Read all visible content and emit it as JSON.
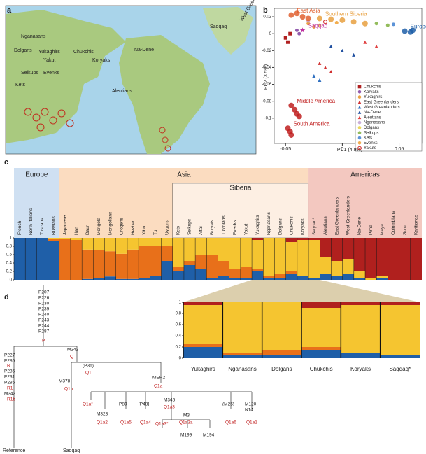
{
  "panel_a": {
    "label": "a",
    "places": [
      "Nganasans",
      "Dolgans",
      "Yukaghirs",
      "Yakut",
      "Selkups",
      "Evenks",
      "Kets",
      "Chukchis",
      "Koryaks",
      "Na-Dene",
      "Aleutians",
      "Saqqaq",
      "West Greenlanders"
    ]
  },
  "panel_b": {
    "type": "scatter",
    "label": "b",
    "x_label": "PC1 (4.9%)",
    "y_label": "PC2 (3.5%)",
    "xlim": [
      -0.06,
      0.07
    ],
    "ylim": [
      -0.13,
      0.03
    ],
    "xticks": [
      -0.05,
      0,
      0.05
    ],
    "yticks": [
      0.02,
      0,
      -0.02,
      -0.04,
      -0.06,
      -0.08,
      -0.1
    ],
    "cluster_series": [
      {
        "name": "East Asia",
        "color": "#e06030",
        "marker": "circle",
        "x": [
          -0.045,
          -0.04,
          -0.035,
          -0.03
        ],
        "y": [
          0.022,
          0.024,
          0.02,
          0.018
        ]
      },
      {
        "name": "Southern Siberia",
        "color": "#e8a040",
        "marker": "circle",
        "x": [
          -0.02,
          -0.01,
          0,
          0.01,
          0.02
        ],
        "y": [
          0.018,
          0.017,
          0.016,
          0.014,
          0.012
        ]
      },
      {
        "name": "Europeans",
        "color": "#1f5fa8",
        "marker": "circle",
        "x": [
          0.055,
          0.06,
          0.062
        ],
        "y": [
          0.003,
          0.002,
          0.004
        ]
      },
      {
        "name": "Saqqaq",
        "color": "#c030a0",
        "marker": "star",
        "x": [
          -0.035
        ],
        "y": [
          0.004
        ]
      },
      {
        "name": "Middle America",
        "color": "#c02020",
        "marker": "circle",
        "x": [
          -0.045,
          -0.042,
          -0.04,
          -0.038
        ],
        "y": [
          -0.085,
          -0.09,
          -0.095,
          -0.098
        ]
      },
      {
        "name": "South America",
        "color": "#c02020",
        "marker": "circle",
        "x": [
          -0.048,
          -0.046,
          -0.045
        ],
        "y": [
          -0.112,
          -0.116,
          -0.12
        ]
      }
    ],
    "series": [
      {
        "name": "Chukchis",
        "color": "#b02020",
        "marker": "square",
        "x": [
          -0.05,
          -0.048,
          -0.046
        ],
        "y": [
          -0.005,
          -0.01,
          0
        ]
      },
      {
        "name": "Koryaks",
        "color": "#8040a0",
        "marker": "circle",
        "x": [
          -0.04,
          -0.038
        ],
        "y": [
          0.004,
          0
        ]
      },
      {
        "name": "Yukaghirs",
        "color": "#e89020",
        "marker": "circle",
        "x": [
          -0.03,
          -0.025
        ],
        "y": [
          0.012,
          0.008
        ]
      },
      {
        "name": "East Greenlanders",
        "color": "#d03030",
        "marker": "triangle",
        "x": [
          -0.02,
          -0.015,
          -0.01
        ],
        "y": [
          -0.035,
          -0.04,
          -0.045
        ]
      },
      {
        "name": "West Greenlanders",
        "color": "#3070c0",
        "marker": "triangle",
        "x": [
          -0.025,
          -0.02
        ],
        "y": [
          -0.05,
          -0.055
        ]
      },
      {
        "name": "Na-Dene",
        "color": "#2050a0",
        "marker": "triangle",
        "x": [
          -0.01,
          0,
          0.01
        ],
        "y": [
          -0.015,
          -0.02,
          -0.025
        ]
      },
      {
        "name": "Aleutians",
        "color": "#e04040",
        "marker": "triangle",
        "x": [
          0.02,
          0.03
        ],
        "y": [
          -0.01,
          -0.015
        ]
      },
      {
        "name": "Nganasans",
        "color": "#c0a0d0",
        "marker": "circle",
        "x": [
          -0.03
        ],
        "y": [
          0.015
        ]
      },
      {
        "name": "Dolgans",
        "color": "#e8d040",
        "marker": "circle",
        "x": [
          -0.02
        ],
        "y": [
          0.01
        ]
      },
      {
        "name": "Selkups",
        "color": "#80b040",
        "marker": "circle",
        "x": [
          0.03,
          0.04
        ],
        "y": [
          0.012,
          0.01
        ]
      },
      {
        "name": "Kets",
        "color": "#4080d0",
        "marker": "circle",
        "x": [
          0.045
        ],
        "y": [
          0.011
        ]
      },
      {
        "name": "Evenks",
        "color": "#f0a030",
        "marker": "circle",
        "x": [
          -0.005
        ],
        "y": [
          0.013
        ]
      },
      {
        "name": "Yakuts",
        "color": "#d02020",
        "marker": "open",
        "x": [
          -0.015
        ],
        "y": [
          0.014
        ]
      }
    ]
  },
  "panel_c": {
    "type": "stacked_bar",
    "label": "c",
    "ylim": [
      0,
      1
    ],
    "yticks": [
      0,
      0.2,
      0.4,
      0.6,
      0.8,
      1
    ],
    "populations": [
      "French",
      "North Italians",
      "Tuscans",
      "Russians",
      "Japanese",
      "Han",
      "Daur",
      "Mongola",
      "Mongolians",
      "Oroqens",
      "Hezhen",
      "Xibo",
      "Tu",
      "Uygurs",
      "Kets",
      "Selkups",
      "Altai",
      "Buryats",
      "Tuvinians",
      "Evenks",
      "Yakut",
      "Yukaghirs",
      "Nganasans",
      "Dolgans",
      "Chukchis",
      "Koryaks",
      "Saqqaq*",
      "Aleutians",
      "East Greenlanders",
      "West Greenlanders",
      "Na-Dene",
      "Pima",
      "Maya",
      "Colombians",
      "Surui",
      "Karitianas"
    ],
    "components": [
      {
        "color": "#1f5fa8",
        "values": [
          1,
          1,
          1,
          0.93,
          0,
          0,
          0.02,
          0.05,
          0.08,
          0.02,
          0.02,
          0.05,
          0.1,
          0.45,
          0.2,
          0.35,
          0.25,
          0.05,
          0.1,
          0.05,
          0.05,
          0.2,
          0.05,
          0.05,
          0.15,
          0.1,
          0.05,
          0.15,
          0.1,
          0.15,
          0.05,
          0,
          0.05,
          0,
          0,
          0
        ]
      },
      {
        "color": "#e8701a",
        "values": [
          0,
          0,
          0,
          0.05,
          0.97,
          0.95,
          0.7,
          0.65,
          0.6,
          0.6,
          0.7,
          0.75,
          0.7,
          0.35,
          0.1,
          0.1,
          0.35,
          0.55,
          0.35,
          0.2,
          0.25,
          0.05,
          0.05,
          0.1,
          0.05,
          0,
          0,
          0,
          0,
          0,
          0,
          0,
          0,
          0,
          0,
          0
        ]
      },
      {
        "color": "#f5c530",
        "values": [
          0,
          0,
          0,
          0.02,
          0.03,
          0.05,
          0.28,
          0.3,
          0.32,
          0.38,
          0.28,
          0.2,
          0.2,
          0.2,
          0.7,
          0.55,
          0.4,
          0.4,
          0.55,
          0.75,
          0.7,
          0.7,
          0.9,
          0.85,
          0.7,
          0.85,
          0.9,
          0.4,
          0.35,
          0.35,
          0.15,
          0.05,
          0.05,
          0,
          0,
          0
        ]
      },
      {
        "color": "#b0201e",
        "values": [
          0,
          0,
          0,
          0,
          0,
          0,
          0,
          0,
          0,
          0,
          0,
          0,
          0,
          0,
          0,
          0,
          0,
          0,
          0,
          0,
          0,
          0.05,
          0,
          0,
          0.1,
          0.05,
          0.05,
          0.45,
          0.55,
          0.5,
          0.8,
          0.95,
          0.9,
          1,
          1,
          1
        ]
      }
    ],
    "groups": [
      {
        "name": "Europe",
        "first": 0,
        "last": 3,
        "color": "#cfe0f2"
      },
      {
        "name": "Asia",
        "first": 4,
        "last": 25,
        "color": "#fbdcc0"
      },
      {
        "name": "Siberia",
        "first": 14,
        "last": 25,
        "color": "#ffffff"
      },
      {
        "name": "Americas",
        "first": 26,
        "last": 35,
        "color": "#f3c8c0"
      }
    ],
    "zoom": {
      "first": 21,
      "labels": [
        "Yukaghirs",
        "Nganasans",
        "Dolgans",
        "Chukchis",
        "Koryaks",
        "Saqqaq*"
      ],
      "yticks": [
        0,
        0.2,
        0.4,
        0.6,
        0.8,
        1
      ]
    }
  },
  "panel_d": {
    "label": "d",
    "tree_labels": [
      {
        "text": "P207",
        "kind": "marker"
      },
      {
        "text": "P226",
        "kind": "marker"
      },
      {
        "text": "P230",
        "kind": "marker"
      },
      {
        "text": "P239",
        "kind": "marker"
      },
      {
        "text": "P240",
        "kind": "marker"
      },
      {
        "text": "P243",
        "kind": "marker"
      },
      {
        "text": "P244",
        "kind": "marker"
      },
      {
        "text": "P287",
        "kind": "marker"
      },
      {
        "text": "P",
        "kind": "haplogroup"
      },
      {
        "text": "P227",
        "kind": "marker"
      },
      {
        "text": "P280",
        "kind": "marker"
      },
      {
        "text": "R",
        "kind": "haplogroup"
      },
      {
        "text": "P236",
        "kind": "marker"
      },
      {
        "text": "P231",
        "kind": "marker"
      },
      {
        "text": "P285",
        "kind": "marker"
      },
      {
        "text": "R1",
        "kind": "haplogroup"
      },
      {
        "text": "M343",
        "kind": "marker"
      },
      {
        "text": "R1b",
        "kind": "haplogroup"
      },
      {
        "text": "M242",
        "kind": "marker"
      },
      {
        "text": "Q",
        "kind": "haplogroup"
      },
      {
        "text": "(P36)",
        "kind": "marker"
      },
      {
        "text": "Q1",
        "kind": "haplogroup"
      },
      {
        "text": "M378",
        "kind": "marker"
      },
      {
        "text": "Q1b",
        "kind": "haplogroup"
      },
      {
        "text": "MEH2",
        "kind": "marker"
      },
      {
        "text": "Q1a",
        "kind": "haplogroup"
      },
      {
        "text": "Q1a*",
        "kind": "haplogroup"
      },
      {
        "text": "M323",
        "kind": "marker"
      },
      {
        "text": "Q1a2",
        "kind": "haplogroup"
      },
      {
        "text": "P89",
        "kind": "marker"
      },
      {
        "text": "Q1a5",
        "kind": "haplogroup"
      },
      {
        "text": "[P48]",
        "kind": "marker"
      },
      {
        "text": "Q1a4",
        "kind": "haplogroup"
      },
      {
        "text": "M346",
        "kind": "marker"
      },
      {
        "text": "Q1a3",
        "kind": "haplogroup"
      },
      {
        "text": "Q1a3*",
        "kind": "haplogroup"
      },
      {
        "text": "M3",
        "kind": "marker"
      },
      {
        "text": "Q1a3a",
        "kind": "haplogroup"
      },
      {
        "text": "M199",
        "kind": "marker"
      },
      {
        "text": "M194",
        "kind": "marker"
      },
      {
        "text": "(M25)",
        "kind": "marker"
      },
      {
        "text": "Q1a6",
        "kind": "haplogroup"
      },
      {
        "text": "M120",
        "kind": "marker"
      },
      {
        "text": "N14",
        "kind": "marker"
      },
      {
        "text": "Q1a1",
        "kind": "haplogroup"
      }
    ],
    "leaves": [
      "Reference",
      "Saqqaq"
    ]
  }
}
